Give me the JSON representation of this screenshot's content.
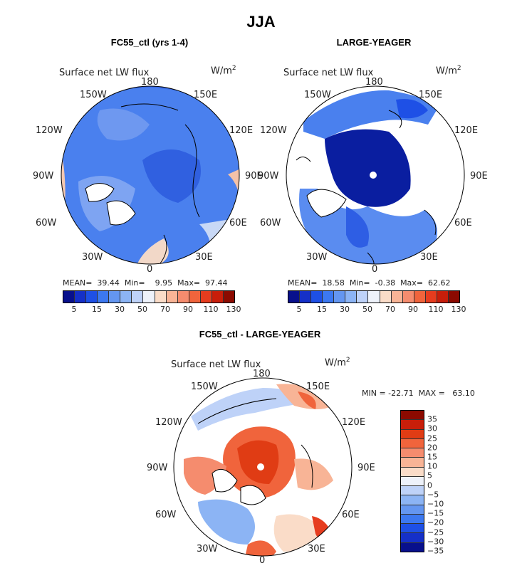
{
  "season": "JJA",
  "panels": [
    {
      "title": "FC55_ctl (yrs 1-4)",
      "variable": "Surface net LW flux",
      "units": "W/m",
      "units_exp": "2",
      "stats_text": "MEAN=  39.44  Min=    9.95  Max=  97.44",
      "lon_labels": [
        "180",
        "150W",
        "150E",
        "120W",
        "120E",
        "90W",
        "90E",
        "60W",
        "60E",
        "30W",
        "30E",
        "0"
      ]
    },
    {
      "title": "LARGE-YEAGER",
      "variable": "Surface net LW flux",
      "units": "W/m",
      "units_exp": "2",
      "stats_text": "MEAN=  18.58  Min=  -0.38  Max=  62.62",
      "lon_labels": [
        "180",
        "150W",
        "150E",
        "120W",
        "120E",
        "90W",
        "90E",
        "60W",
        "60E",
        "30W",
        "30E",
        "0"
      ]
    },
    {
      "title": "FC55_ctl - LARGE-YEAGER",
      "variable": "Surface net LW flux",
      "units": "W/m",
      "units_exp": "2",
      "stats_text": "MIN = -22.71  MAX =   63.10",
      "lon_labels": [
        "180",
        "150W",
        "150E",
        "120W",
        "120E",
        "90W",
        "90E",
        "60W",
        "60E",
        "30W",
        "30E",
        "0"
      ]
    }
  ],
  "colorbar_h": {
    "colors": [
      "#08108c",
      "#1530c8",
      "#1e50e6",
      "#3c78f0",
      "#6496f0",
      "#8cb4f4",
      "#bed2f8",
      "#eef2fa",
      "#fadcc8",
      "#f8b496",
      "#f58c6e",
      "#f0643c",
      "#e63c1e",
      "#c81e0a",
      "#8c0a00"
    ],
    "tick_labels": [
      "5",
      "15",
      "30",
      "50",
      "70",
      "90",
      "110",
      "130"
    ],
    "tick_positions": [
      0.5,
      1.5,
      2.5,
      3.5,
      4.5,
      5.5,
      6.5,
      7.5,
      8.5,
      9.5,
      10.5,
      11.5,
      12.5,
      13.5,
      14.5
    ]
  },
  "colorbar_v": {
    "colors": [
      "#8c0a00",
      "#c81e0a",
      "#e03c14",
      "#f0643c",
      "#f58c6e",
      "#f8b496",
      "#fadcc8",
      "#eef2fa",
      "#bed2f8",
      "#8cb4f4",
      "#6496f0",
      "#3c78f0",
      "#1e50e6",
      "#1530c8",
      "#08108c"
    ],
    "tick_labels": [
      "35",
      "30",
      "25",
      "20",
      "15",
      "10",
      "5",
      "0",
      "−5",
      "−10",
      "−15",
      "−20",
      "−25",
      "−30",
      "−35"
    ]
  },
  "colors": {
    "ocean_blue_ctl": "#3f74ea",
    "ocean_blue_deep": "#0a1ea0",
    "land_white": "#ffffff",
    "diff_red": "#e8502a"
  }
}
